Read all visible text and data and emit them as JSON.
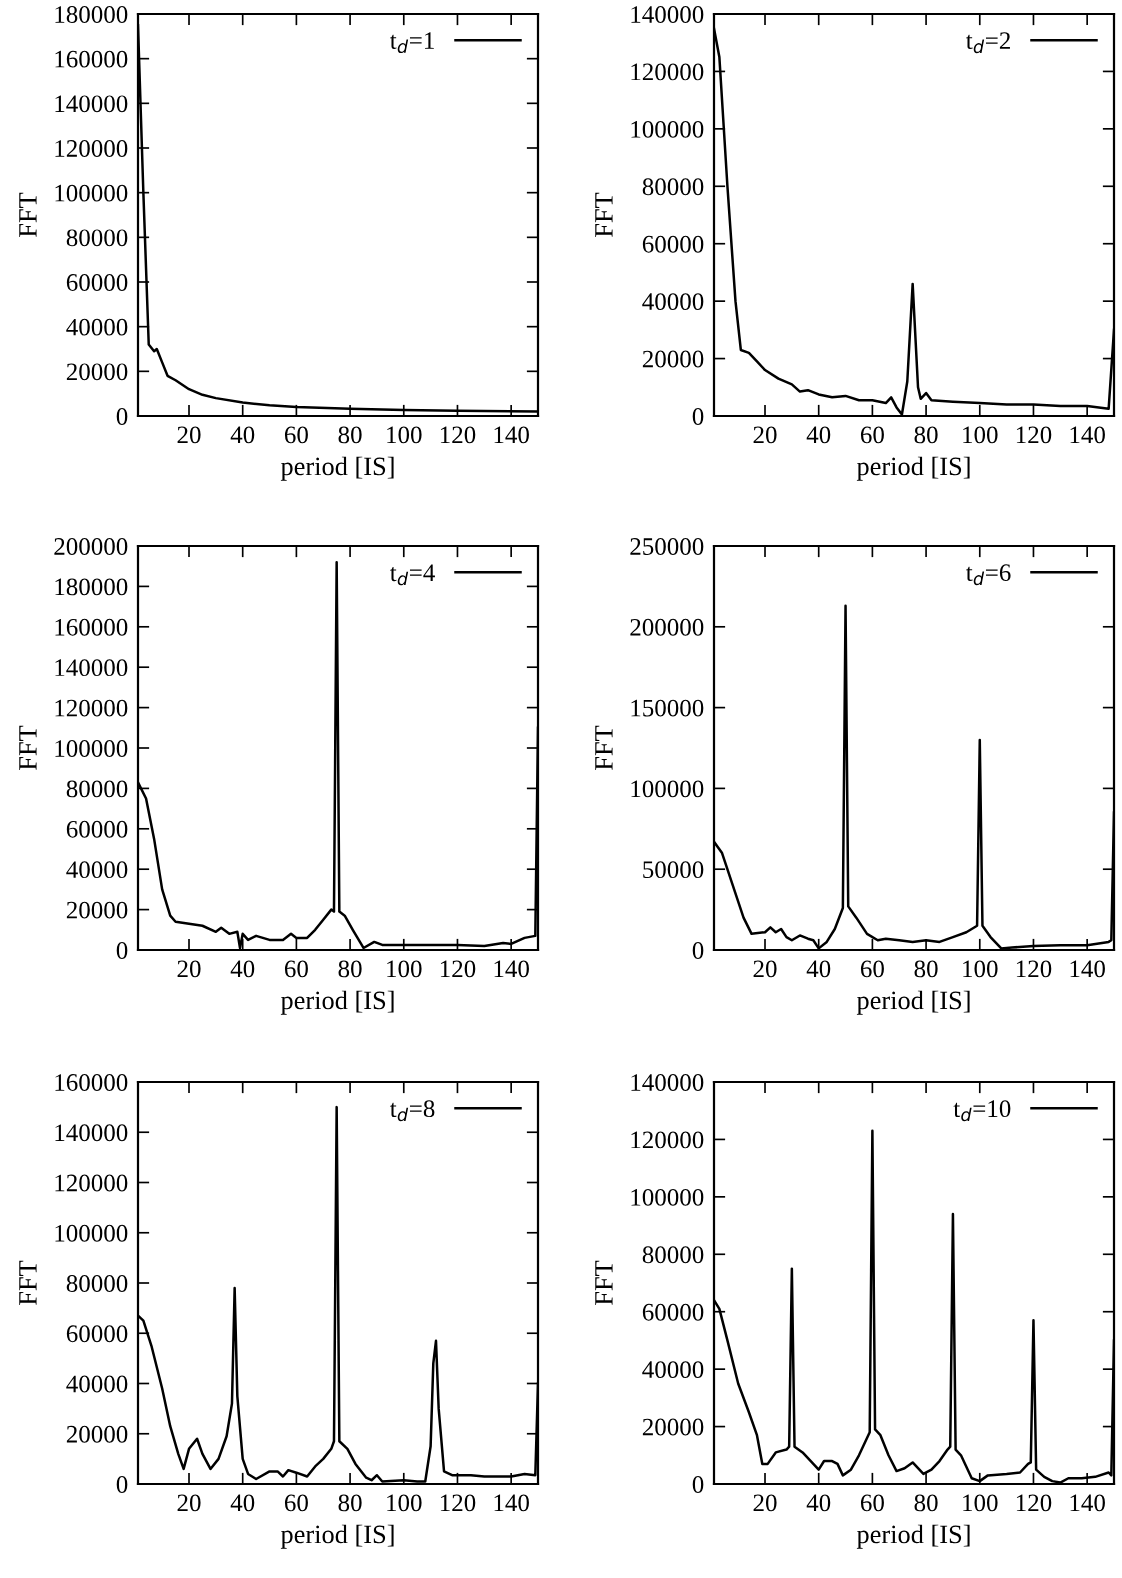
{
  "chart_data": [
    {
      "type": "line",
      "xlabel": "period [IS]",
      "ylabel": "FFT",
      "xlim": [
        1,
        150
      ],
      "ylim": [
        0,
        180000
      ],
      "xticks": [
        20,
        40,
        60,
        80,
        100,
        120,
        140
      ],
      "yticks": [
        0,
        20000,
        40000,
        60000,
        80000,
        100000,
        120000,
        140000,
        160000,
        180000
      ],
      "legend": "top right",
      "series": [
        {
          "name": "t$_{d}$=1",
          "color": "#000000",
          "x": [
            1,
            3,
            5,
            7,
            8,
            10,
            12,
            15,
            20,
            25,
            30,
            40,
            50,
            60,
            80,
            100,
            120,
            150
          ],
          "values": [
            175000,
            100000,
            32000,
            29000,
            30000,
            24000,
            18000,
            16000,
            12000,
            9500,
            8000,
            6000,
            4800,
            4000,
            3200,
            2700,
            2300,
            2000
          ]
        }
      ]
    },
    {
      "type": "line",
      "xlabel": "period [IS]",
      "ylabel": "FFT",
      "xlim": [
        1,
        150
      ],
      "ylim": [
        0,
        140000
      ],
      "xticks": [
        20,
        40,
        60,
        80,
        100,
        120,
        140
      ],
      "yticks": [
        0,
        20000,
        40000,
        60000,
        80000,
        100000,
        120000,
        140000
      ],
      "legend": "top right",
      "series": [
        {
          "name": "t$_{d}$=2",
          "color": "#000000",
          "x": [
            1,
            3,
            6,
            9,
            11,
            14,
            17,
            20,
            25,
            30,
            33,
            36,
            40,
            45,
            50,
            55,
            60,
            65,
            67,
            69,
            71,
            73,
            75,
            77,
            78,
            80,
            82,
            90,
            100,
            110,
            120,
            130,
            140,
            148,
            150
          ],
          "values": [
            135000,
            125000,
            80000,
            40000,
            23000,
            22000,
            19000,
            16000,
            13000,
            11000,
            8500,
            9000,
            7500,
            6500,
            7000,
            5500,
            5500,
            4500,
            6500,
            3000,
            500,
            12000,
            46000,
            10000,
            6000,
            8000,
            5500,
            5000,
            4500,
            4000,
            4000,
            3500,
            3500,
            2500,
            30000
          ]
        }
      ]
    },
    {
      "type": "line",
      "xlabel": "period [IS]",
      "ylabel": "FFT",
      "xlim": [
        1,
        150
      ],
      "ylim": [
        0,
        200000
      ],
      "xticks": [
        20,
        40,
        60,
        80,
        100,
        120,
        140
      ],
      "yticks": [
        0,
        20000,
        40000,
        60000,
        80000,
        100000,
        120000,
        140000,
        160000,
        180000,
        200000
      ],
      "legend": "top right",
      "series": [
        {
          "name": "t$_{d}$=4",
          "color": "#000000",
          "x": [
            1,
            4,
            7,
            10,
            13,
            15,
            20,
            25,
            30,
            32,
            35,
            38,
            39,
            40,
            42,
            45,
            50,
            55,
            58,
            60,
            64,
            67,
            70,
            73,
            74,
            75,
            76,
            78,
            81,
            85,
            89,
            92,
            100,
            110,
            120,
            130,
            137,
            140,
            145,
            149,
            150
          ],
          "values": [
            83000,
            75000,
            55000,
            30000,
            17000,
            14000,
            13000,
            12000,
            9000,
            11000,
            8000,
            9000,
            1000,
            8000,
            5000,
            7000,
            5000,
            5000,
            8000,
            6000,
            6000,
            10000,
            15000,
            20000,
            19000,
            192000,
            19000,
            17000,
            10000,
            1000,
            4000,
            2500,
            2500,
            2500,
            2500,
            2000,
            3500,
            3000,
            6000,
            7000,
            110000
          ]
        }
      ]
    },
    {
      "type": "line",
      "xlabel": "period [IS]",
      "ylabel": "FFT",
      "xlim": [
        1,
        150
      ],
      "ylim": [
        0,
        250000
      ],
      "xticks": [
        20,
        40,
        60,
        80,
        100,
        120,
        140
      ],
      "yticks": [
        0,
        50000,
        100000,
        150000,
        200000,
        250000
      ],
      "legend": "top right",
      "series": [
        {
          "name": "t$_{d}$=6",
          "color": "#000000",
          "x": [
            1,
            4,
            8,
            12,
            15,
            20,
            22,
            24,
            26,
            28,
            30,
            33,
            36,
            38,
            40,
            43,
            46,
            49,
            50,
            51,
            54,
            58,
            62,
            65,
            70,
            75,
            80,
            85,
            90,
            95,
            99,
            100,
            101,
            104,
            108,
            112,
            120,
            130,
            140,
            148,
            149,
            150
          ],
          "values": [
            67000,
            60000,
            40000,
            20000,
            10000,
            11000,
            14000,
            11000,
            13000,
            8000,
            6000,
            9000,
            7000,
            6000,
            1000,
            5000,
            13000,
            26000,
            213000,
            27000,
            20000,
            10000,
            6000,
            7000,
            6000,
            5000,
            6000,
            5000,
            8000,
            11000,
            15000,
            130000,
            15000,
            8000,
            1000,
            1500,
            2500,
            3000,
            3000,
            5000,
            6000,
            85000
          ]
        }
      ]
    },
    {
      "type": "line",
      "xlabel": "period [IS]",
      "ylabel": "FFT",
      "xlim": [
        1,
        150
      ],
      "ylim": [
        0,
        160000
      ],
      "xticks": [
        20,
        40,
        60,
        80,
        100,
        120,
        140
      ],
      "yticks": [
        0,
        20000,
        40000,
        60000,
        80000,
        100000,
        120000,
        140000,
        160000
      ],
      "legend": "top right",
      "series": [
        {
          "name": "t$_{d}$=8",
          "color": "#000000",
          "x": [
            1,
            3,
            6,
            10,
            13,
            16,
            18,
            20,
            23,
            25,
            28,
            31,
            34,
            36,
            37,
            38,
            40,
            42,
            45,
            50,
            53,
            55,
            57,
            60,
            64,
            67,
            70,
            73,
            74,
            75,
            76,
            79,
            82,
            86,
            88,
            90,
            92,
            100,
            105,
            108,
            110,
            111,
            112,
            113,
            115,
            118,
            125,
            130,
            140,
            145,
            149,
            150
          ],
          "values": [
            67000,
            65000,
            55000,
            38000,
            23000,
            12000,
            6000,
            14000,
            18000,
            12000,
            6000,
            10000,
            19000,
            32000,
            78000,
            35000,
            10000,
            4000,
            2000,
            5000,
            5000,
            3000,
            5500,
            4500,
            3000,
            7000,
            10000,
            14000,
            17000,
            150000,
            17000,
            14000,
            8000,
            2500,
            1500,
            3500,
            1000,
            1500,
            1000,
            1000,
            15000,
            48000,
            57000,
            30000,
            5000,
            3500,
            3500,
            3000,
            3000,
            4000,
            3500,
            40000
          ]
        }
      ]
    },
    {
      "type": "line",
      "xlabel": "period [IS]",
      "ylabel": "FFT",
      "xlim": [
        1,
        150
      ],
      "ylim": [
        0,
        140000
      ],
      "xticks": [
        20,
        40,
        60,
        80,
        100,
        120,
        140
      ],
      "yticks": [
        0,
        20000,
        40000,
        60000,
        80000,
        100000,
        120000,
        140000
      ],
      "legend": "top right",
      "series": [
        {
          "name": "t$_{d}$=10",
          "color": "#000000",
          "x": [
            1,
            3,
            6,
            10,
            14,
            17,
            19,
            21,
            24,
            28,
            29,
            30,
            31,
            34,
            38,
            40,
            42,
            45,
            47,
            49,
            52,
            55,
            58,
            59,
            60,
            61,
            63,
            66,
            69,
            72,
            75,
            77,
            79,
            82,
            85,
            88,
            89,
            90,
            91,
            93,
            97,
            100,
            103,
            110,
            115,
            118,
            119,
            120,
            121,
            124,
            127,
            130,
            133,
            138,
            143,
            148,
            149,
            150
          ],
          "values": [
            64000,
            61000,
            50000,
            35000,
            25000,
            17000,
            7000,
            7000,
            11000,
            12000,
            13000,
            75000,
            13000,
            11000,
            7000,
            5000,
            8000,
            8000,
            7000,
            3000,
            5000,
            10000,
            16000,
            18000,
            123000,
            19000,
            17000,
            10000,
            4500,
            5500,
            7500,
            5500,
            3500,
            5000,
            8000,
            12000,
            13000,
            94000,
            12000,
            10000,
            2000,
            1000,
            3000,
            3500,
            4000,
            7000,
            7500,
            57000,
            5000,
            2500,
            1000,
            500,
            2000,
            2000,
            2500,
            4000,
            3000,
            50000
          ]
        }
      ]
    }
  ]
}
